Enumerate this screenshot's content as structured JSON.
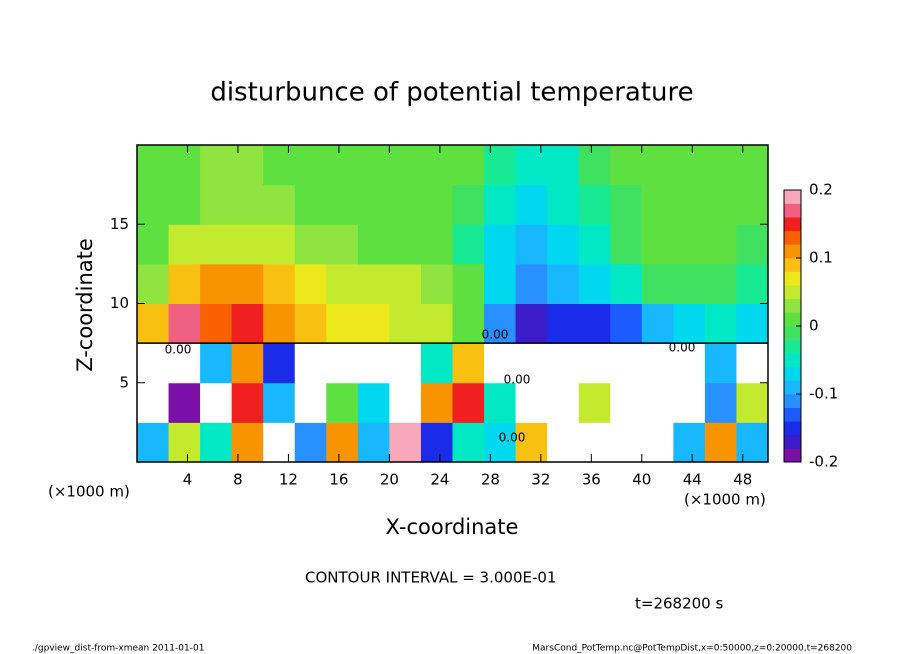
{
  "chart_data": {
    "type": "heatmap",
    "title": "disturbunce of potential temperature",
    "xlabel": "X-coordinate",
    "ylabel": "Z-coordinate",
    "xunit_left": "(×1000 m)",
    "xunit_right": "(×1000 m)",
    "contour_interval": "CONTOUR INTERVAL = 3.000E-01",
    "time_label": "t=268200 s",
    "footer_left": "./gpview_dist-from-xmean  2011-01-01",
    "footer_right": "MarsCond_PotTemp.nc@PotTempDist,x=0:50000,z=0:20000,t=268200",
    "annotations": [
      "0.00",
      "0.00",
      "0.00",
      "0.00",
      "0.00"
    ],
    "xlim": [
      0,
      50
    ],
    "ylim": [
      0,
      20
    ],
    "xticks": [
      4,
      8,
      12,
      16,
      20,
      24,
      28,
      32,
      36,
      40,
      44,
      48
    ],
    "yticks": [
      5,
      10,
      15
    ],
    "x": [
      1.25,
      3.75,
      6.25,
      8.75,
      11.25,
      13.75,
      16.25,
      18.75,
      21.25,
      23.75,
      26.25,
      28.75,
      31.25,
      33.75,
      36.25,
      38.75,
      41.25,
      43.75,
      46.25,
      48.75
    ],
    "y": [
      1.25,
      3.75,
      6.25,
      8.75,
      11.25,
      13.75,
      16.25,
      18.75
    ],
    "values": [
      [
        -0.1,
        0.05,
        -0.05,
        0.1,
        0.3,
        -0.12,
        0.12,
        -0.1,
        0.2,
        -0.15,
        -0.05,
        -0.08,
        0.08,
        0.3,
        0.3,
        0.3,
        0.3,
        -0.1,
        0.1,
        -0.1
      ],
      [
        0.3,
        -0.2,
        0.3,
        0.15,
        -0.1,
        0.3,
        0,
        -0.08,
        0.3,
        0.1,
        0.15,
        -0.05,
        0.3,
        0.3,
        0.05,
        0.3,
        0.3,
        0.3,
        -0.12,
        0.05
      ],
      [
        0.25,
        0.3,
        -0.1,
        0.1,
        -0.15,
        0.3,
        0.3,
        0.3,
        0.3,
        -0.05,
        0.08,
        0.3,
        0.3,
        0.3,
        0.3,
        0.3,
        0.3,
        0.3,
        -0.1,
        0.3
      ],
      [
        0.08,
        0.16,
        0.13,
        0.14,
        0.1,
        0.08,
        0.07,
        0.06,
        0.05,
        0.05,
        0.02,
        -0.12,
        -0.17,
        -0.15,
        -0.16,
        -0.14,
        -0.1,
        -0.07,
        -0.06,
        -0.08
      ],
      [
        0.03,
        0.09,
        0.1,
        0.1,
        0.08,
        0.06,
        0.05,
        0.04,
        0.04,
        0.03,
        0,
        -0.08,
        -0.12,
        -0.1,
        -0.08,
        -0.05,
        -0.02,
        -0.01,
        -0.01,
        -0.03
      ],
      [
        0.01,
        0.04,
        0.05,
        0.05,
        0.04,
        0.03,
        0.03,
        0.02,
        0.02,
        0.01,
        -0.03,
        -0.08,
        -0.09,
        -0.07,
        -0.05,
        -0.02,
        0,
        0,
        0.01,
        -0.01
      ],
      [
        0,
        0.02,
        0.03,
        0.03,
        0.03,
        0.02,
        0.02,
        0.02,
        0.01,
        0.01,
        -0.02,
        -0.06,
        -0.07,
        -0.06,
        -0.03,
        -0.01,
        0,
        0,
        0.01,
        0
      ],
      [
        0.02,
        0.02,
        0.03,
        0.03,
        0.02,
        0.02,
        0.02,
        0.02,
        0.01,
        0.01,
        0,
        -0.03,
        -0.05,
        -0.04,
        -0.02,
        0,
        0.01,
        0.01,
        0.01,
        0.01
      ]
    ],
    "clim": [
      -0.2,
      0.2
    ],
    "colorbar_ticks": [
      -0.2,
      -0.1,
      0,
      0.1,
      0.2
    ],
    "colors": [
      "#7a10a8",
      "#3a1cc8",
      "#1a2ce8",
      "#1c5cff",
      "#2890ff",
      "#18b8ff",
      "#00d8f0",
      "#00e8c4",
      "#18ea94",
      "#40e060",
      "#5ee040",
      "#90e440",
      "#c4ea30",
      "#ece81c",
      "#f8c010",
      "#f89400",
      "#f86000",
      "#f02020",
      "#f06080",
      "#f8a8b8"
    ],
    "out_of_range_color": "#ffffff"
  }
}
